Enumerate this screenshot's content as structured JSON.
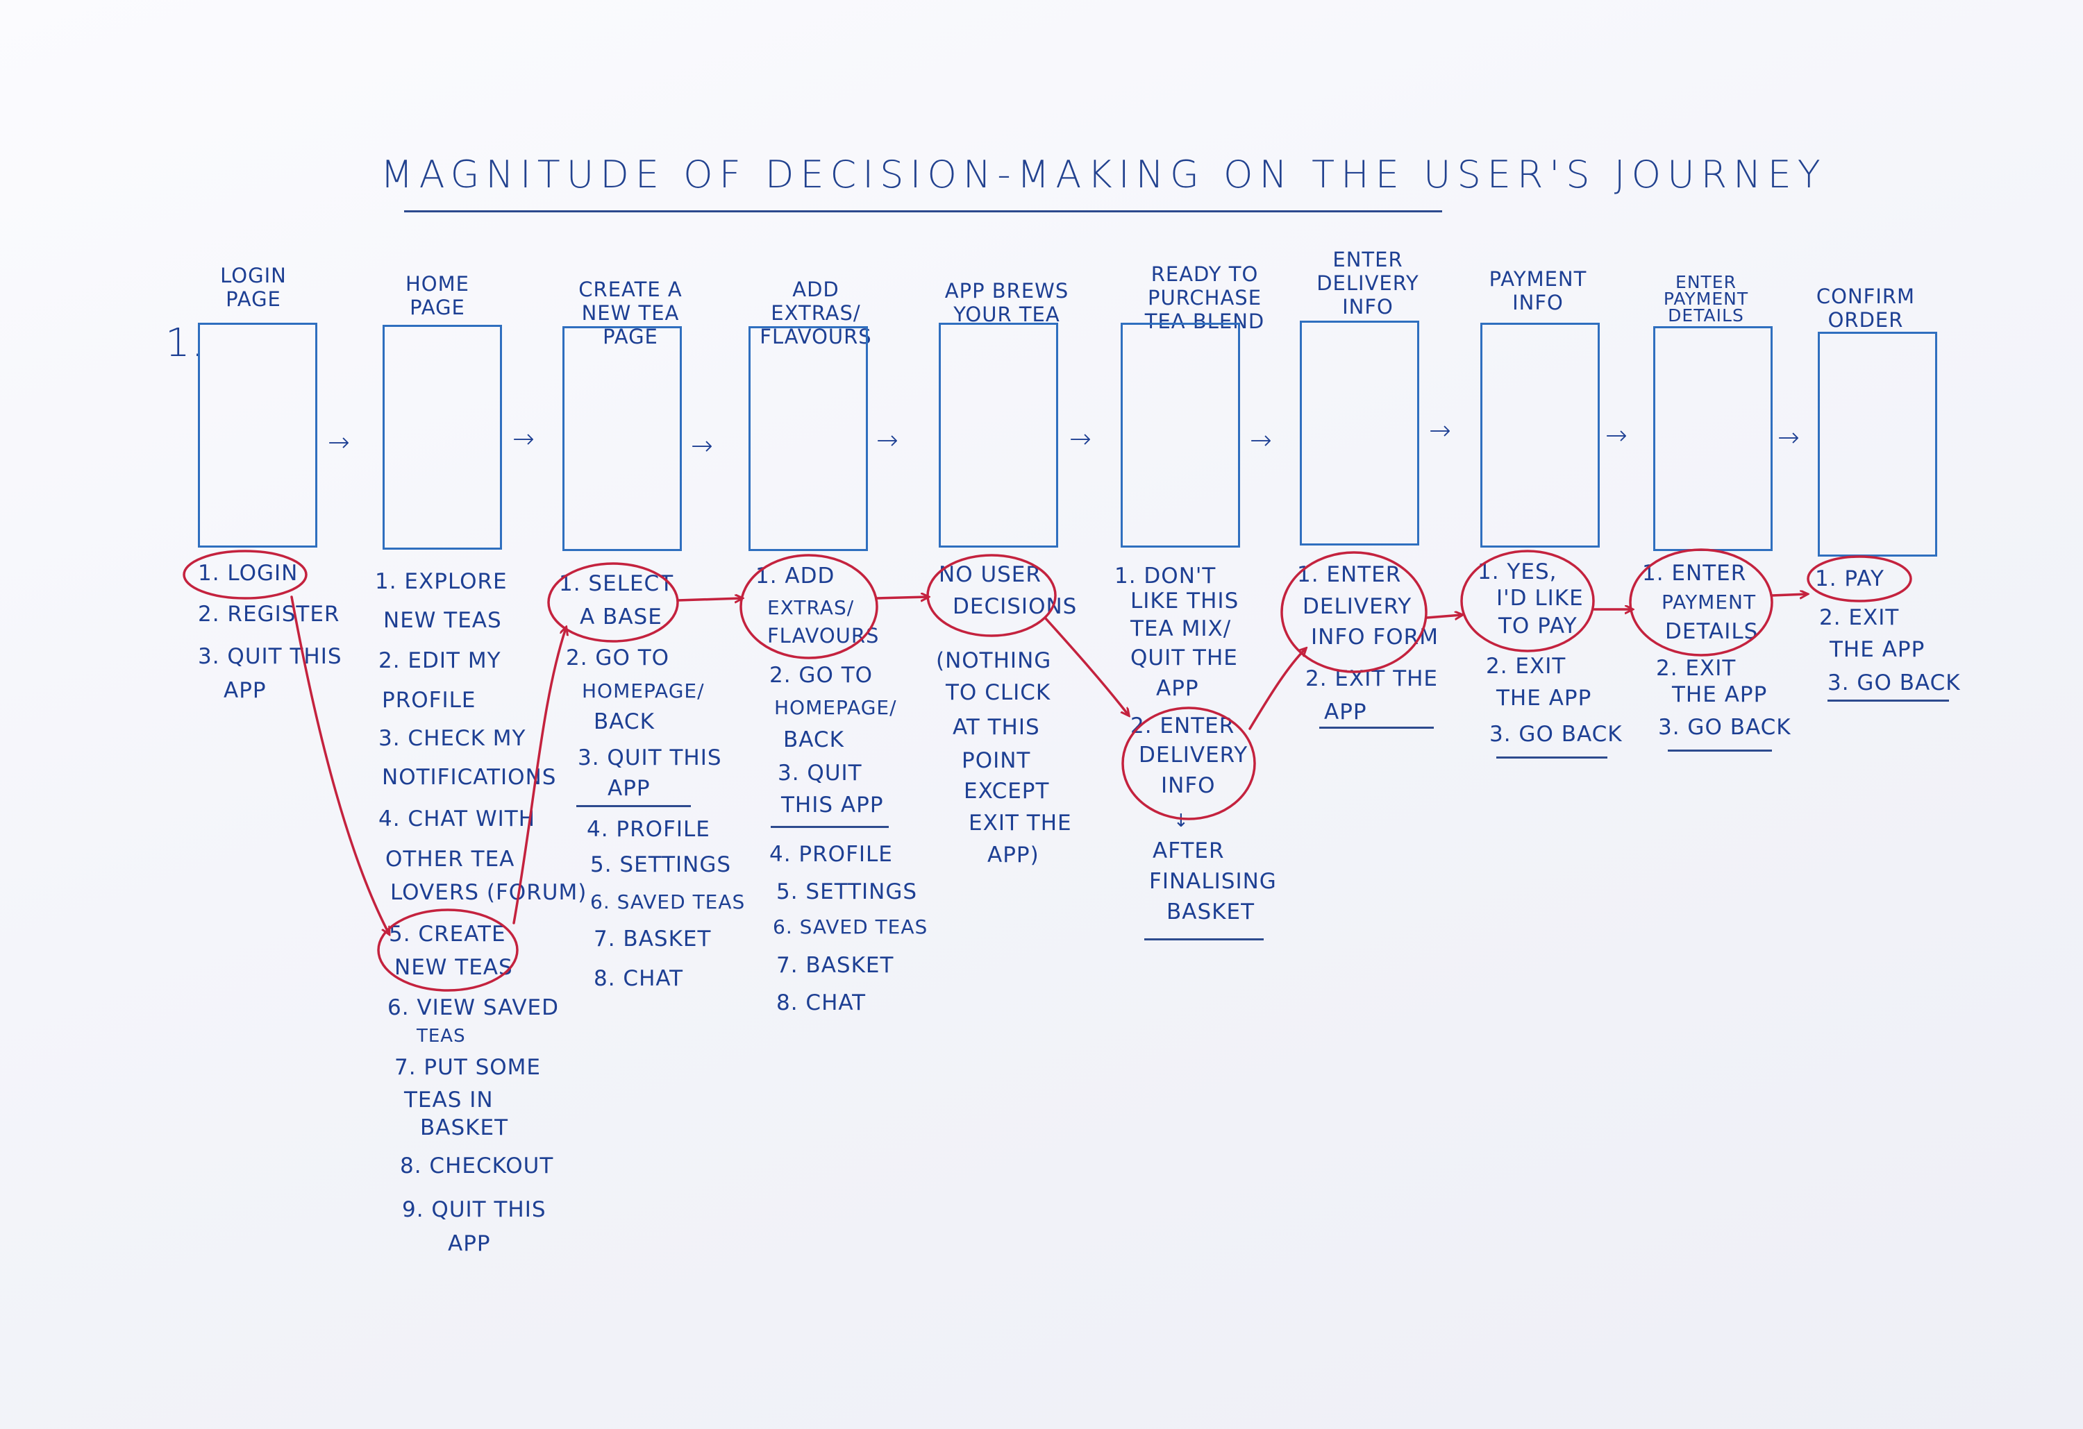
{
  "title": "MAGNITUDE OF DECISION-MAKING ON THE USER'S JOURNEY",
  "row_marker": "1.",
  "arrow_glyph": "→",
  "colors": {
    "ink": "#1d3f93",
    "frame": "#2f6fbf",
    "highlight": "#c4223e"
  },
  "steps": [
    {
      "label": "LOGIN\nPAGE",
      "options": [
        "1. LOGIN",
        "2. REGISTER",
        "3. QUIT THIS",
        "APP"
      ]
    },
    {
      "label": "HOME\nPAGE",
      "options": [
        "1. EXPLORE",
        "NEW TEAS",
        "2. EDIT MY",
        "PROFILE",
        "3. CHECK MY",
        "NOTIFICATIONS",
        "4. CHAT WITH",
        "OTHER TEA",
        "LOVERS (FORUM)",
        "5. CREATE",
        "NEW TEAS",
        "6. VIEW SAVED",
        "TEAS",
        "7. PUT SOME",
        "TEAS IN",
        "BASKET",
        "8. CHECKOUT",
        "9. QUIT THIS",
        "APP"
      ]
    },
    {
      "label": "CREATE A\nNEW TEA PAGE",
      "options": [
        "1. SELECT",
        "A BASE",
        "2. GO TO",
        "HOMEPAGE/",
        "BACK",
        "3. QUIT THIS",
        "APP",
        "4. PROFILE",
        "5. SETTINGS",
        "6. SAVED TEAS",
        "7. BASKET",
        "8. CHAT"
      ]
    },
    {
      "label": "ADD EXTRAS/\nFLAVOURS",
      "options": [
        "1. ADD",
        "EXTRAS/",
        "FLAVOURS",
        "2. GO TO",
        "HOMEPAGE/",
        "BACK",
        "3. QUIT",
        "THIS APP",
        "4. PROFILE",
        "5. SETTINGS",
        "6. SAVED TEAS",
        "7. BASKET",
        "8. CHAT"
      ]
    },
    {
      "label": "APP BREWS\nYOUR TEA",
      "options": [
        "NO USER",
        "DECISIONS",
        "(NOTHING",
        "TO CLICK",
        "AT THIS",
        "POINT",
        "EXCEPT",
        "EXIT THE",
        "APP)"
      ]
    },
    {
      "label": "READY TO PURCHASE\nTEA BLEND",
      "options": [
        "1. DON'T",
        "LIKE THIS",
        "TEA MIX/",
        "QUIT THE",
        "APP",
        "2. ENTER",
        "DELIVERY",
        "INFO",
        "↓",
        "AFTER",
        "FINALISING",
        "BASKET"
      ]
    },
    {
      "label": "ENTER\nDELIVERY\nINFO",
      "options": [
        "1. ENTER",
        "DELIVERY",
        "INFO FORM",
        "2. EXIT THE",
        "APP"
      ]
    },
    {
      "label": "PAYMENT\nINFO",
      "options": [
        "1. YES,",
        "I'D LIKE",
        "TO PAY",
        "2. EXIT",
        "THE APP",
        "3. GO BACK"
      ]
    },
    {
      "label": "ENTER\nPAYMENT\nDETAILS",
      "options": [
        "1. ENTER",
        "PAYMENT",
        "DETAILS",
        "2. EXIT",
        "THE APP",
        "3. GO BACK"
      ]
    },
    {
      "label": "CONFIRM\nORDER",
      "options": [
        "1. PAY",
        "2. EXIT",
        "THE APP",
        "3. GO BACK"
      ]
    }
  ]
}
